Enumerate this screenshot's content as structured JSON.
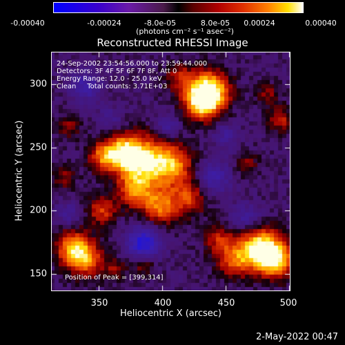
{
  "colorbar": {
    "ticks": [
      "-0.00040",
      "-0.00024",
      "-8.0e-05",
      "8.0e-05",
      "0.00024",
      "0.00040"
    ],
    "units": "(photons cm⁻² s⁻¹ asec⁻²)",
    "gradient_colors": [
      "#0000ff",
      "#6a1aa8",
      "#000000",
      "#b00000",
      "#ff8000",
      "#ffffff"
    ]
  },
  "title": "Reconstructed RHESSI Image",
  "info": {
    "line1": "24-Sep-2002 23:54:56.000 to 23:59:44.000",
    "line2": "Detectors: 3F 4F 5F 6F 7F 8F, Att 0",
    "line3": "Energy Range: 12.0 - 25.0 keV",
    "line4": "Clean     Total counts: 3.71E+03"
  },
  "peak_label": "Position of Peak = [399,314]",
  "axes": {
    "xlabel": "Heliocentric X (arcsec)",
    "ylabel": "Heliocentric Y (arcsec)",
    "xticks": [
      "350",
      "400",
      "450",
      "500"
    ],
    "yticks": [
      "150",
      "200",
      "250",
      "300"
    ],
    "xlim": [
      313,
      500
    ],
    "ylim": [
      136,
      323
    ]
  },
  "datestamp": "2-May-2022 00:47"
}
